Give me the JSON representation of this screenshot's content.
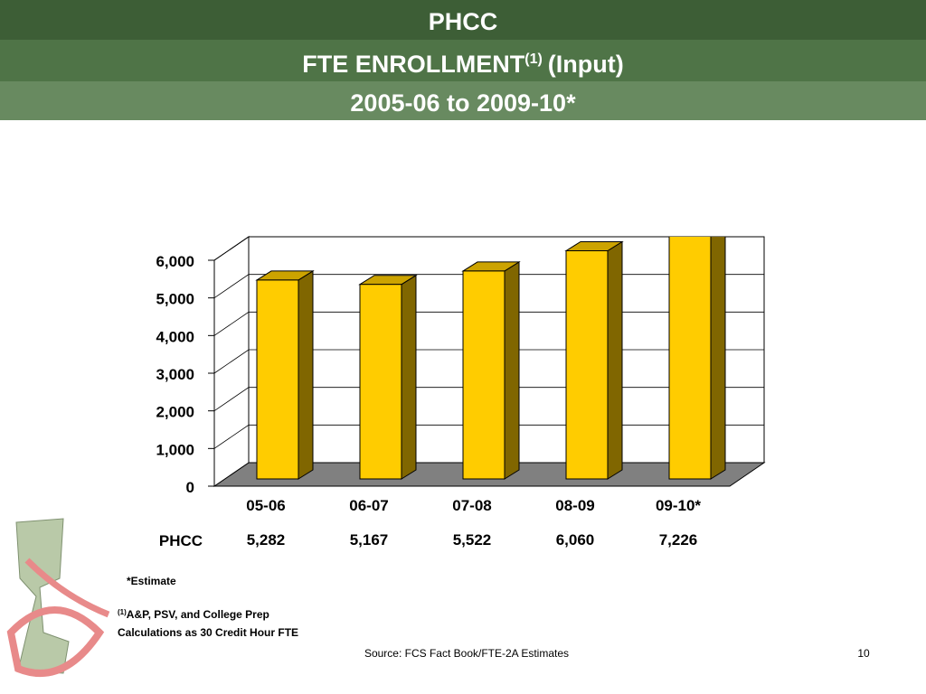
{
  "header": {
    "line1": "PHCC",
    "line2": "FTE ENROLLMENT",
    "line2_sup": "(1)",
    "line2_end": "(Input)",
    "line3": "2005-06 to 2009-10*"
  },
  "chart_data": {
    "type": "bar",
    "categories": [
      "05-06",
      "06-07",
      "07-08",
      "08-09",
      "09-10*"
    ],
    "series": [
      {
        "name": "PHCC",
        "color": "#ffcc00",
        "values": [
          5282,
          5167,
          5522,
          6060,
          7226
        ],
        "value_labels": [
          "5,282",
          "5,167",
          "5,522",
          "6,060",
          "7,226"
        ]
      }
    ],
    "ylim": [
      0,
      6000
    ],
    "yticks": [
      0,
      {
        "value": 1000,
        "label": "1,000"
      },
      {
        "value": 2000,
        "label": "2,000"
      },
      {
        "value": 3000,
        "label": "3,000"
      },
      {
        "value": 4000,
        "label": "4,000"
      },
      {
        "value": 5000,
        "label": "5,000"
      },
      {
        "value": 6000,
        "label": "6,000"
      }
    ],
    "grid": true
  },
  "notes": {
    "estimate": "*Estimate",
    "fn_sup": "(1)",
    "fn_line1": "A&P, PSV, and College Prep",
    "fn_line2": "Calculations as 30 Credit Hour FTE",
    "source": "Source: FCS Fact Book/FTE-2A Estimates",
    "page": "10"
  }
}
